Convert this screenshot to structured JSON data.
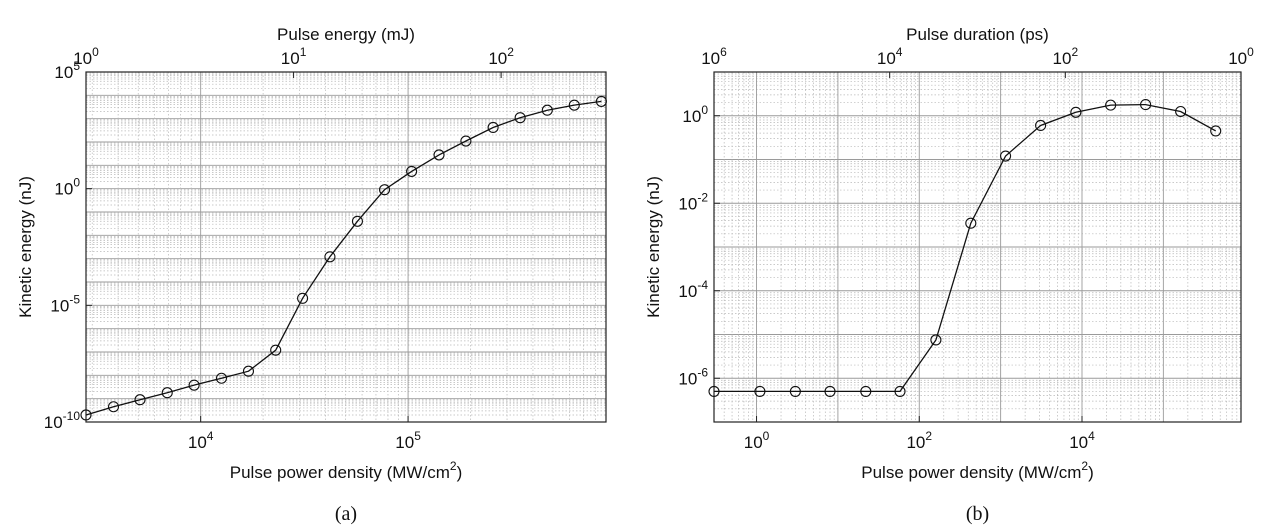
{
  "chart_data": [
    {
      "type": "line",
      "panel_label": "(a)",
      "xlabel": "Pulse power density (MW/cm²)",
      "ylabel": "Kinetic energy (nJ)",
      "top_xlabel": "Pulse energy (mJ)",
      "x_scale": "log",
      "y_scale": "log",
      "xlim": [
        2800,
        900000
      ],
      "ylim": [
        1e-10,
        100000
      ],
      "top_xlim": [
        1,
        320
      ],
      "x_ticks": [
        {
          "value": 10000,
          "base": "10",
          "exp": "4"
        },
        {
          "value": 100000,
          "base": "10",
          "exp": "5"
        }
      ],
      "y_ticks": [
        {
          "value": 1e-10,
          "base": "10",
          "exp": "-10"
        },
        {
          "value": 1e-05,
          "base": "10",
          "exp": "-5"
        },
        {
          "value": 1,
          "base": "10",
          "exp": "0"
        },
        {
          "value": 100000,
          "base": "10",
          "exp": "5"
        }
      ],
      "top_ticks": [
        {
          "value": 1,
          "base": "10",
          "exp": "0"
        },
        {
          "value": 10,
          "base": "10",
          "exp": "1"
        },
        {
          "value": 100,
          "base": "10",
          "exp": "2"
        }
      ],
      "grid": true,
      "marker": "open circle",
      "x": [
        2800,
        3800,
        5100,
        6900,
        9300,
        12600,
        17000,
        23000,
        31000,
        42000,
        57000,
        77000,
        104000,
        141000,
        190000,
        257000,
        347000,
        469000,
        633000,
        855000
      ],
      "y": [
        2e-10,
        4.5e-10,
        9e-10,
        1.8e-09,
        3.8e-09,
        7.5e-09,
        1.5e-08,
        1.2e-07,
        2e-05,
        0.0012,
        0.04,
        0.9,
        5.5,
        28,
        110,
        420,
        1100,
        2300,
        3800,
        5500
      ]
    },
    {
      "type": "line",
      "panel_label": "(b)",
      "xlabel": "Pulse power density (MW/cm²)",
      "ylabel": "Kinetic energy (nJ)",
      "top_xlabel": "Pulse duration (ps)",
      "x_scale": "log",
      "y_scale": "log",
      "xlim": [
        0.3,
        900000
      ],
      "ylim": [
        1e-07,
        10
      ],
      "top_xlim": [
        1000000,
        1
      ],
      "x_ticks": [
        {
          "value": 1,
          "base": "10",
          "exp": "0"
        },
        {
          "value": 100,
          "base": "10",
          "exp": "2"
        },
        {
          "value": 10000,
          "base": "10",
          "exp": "4"
        }
      ],
      "y_ticks": [
        {
          "value": 1e-06,
          "base": "10",
          "exp": "-6"
        },
        {
          "value": 0.0001,
          "base": "10",
          "exp": "-4"
        },
        {
          "value": 0.01,
          "base": "10",
          "exp": "-2"
        },
        {
          "value": 1,
          "base": "10",
          "exp": "0"
        }
      ],
      "top_ticks": [
        {
          "value": 1000000,
          "base": "10",
          "exp": "6"
        },
        {
          "value": 10000,
          "base": "10",
          "exp": "4"
        },
        {
          "value": 100,
          "base": "10",
          "exp": "2"
        },
        {
          "value": 1,
          "base": "10",
          "exp": "0"
        }
      ],
      "grid": true,
      "marker": "open circle",
      "x": [
        0.3,
        1.1,
        3.0,
        8.0,
        22,
        58,
        160,
        430,
        1150,
        3100,
        8400,
        22500,
        60500,
        163000,
        440000
      ],
      "y": [
        5e-07,
        5e-07,
        5e-07,
        5e-07,
        5e-07,
        5e-07,
        7.5e-06,
        0.0035,
        0.12,
        0.6,
        1.2,
        1.75,
        1.8,
        1.25,
        0.45
      ]
    }
  ]
}
